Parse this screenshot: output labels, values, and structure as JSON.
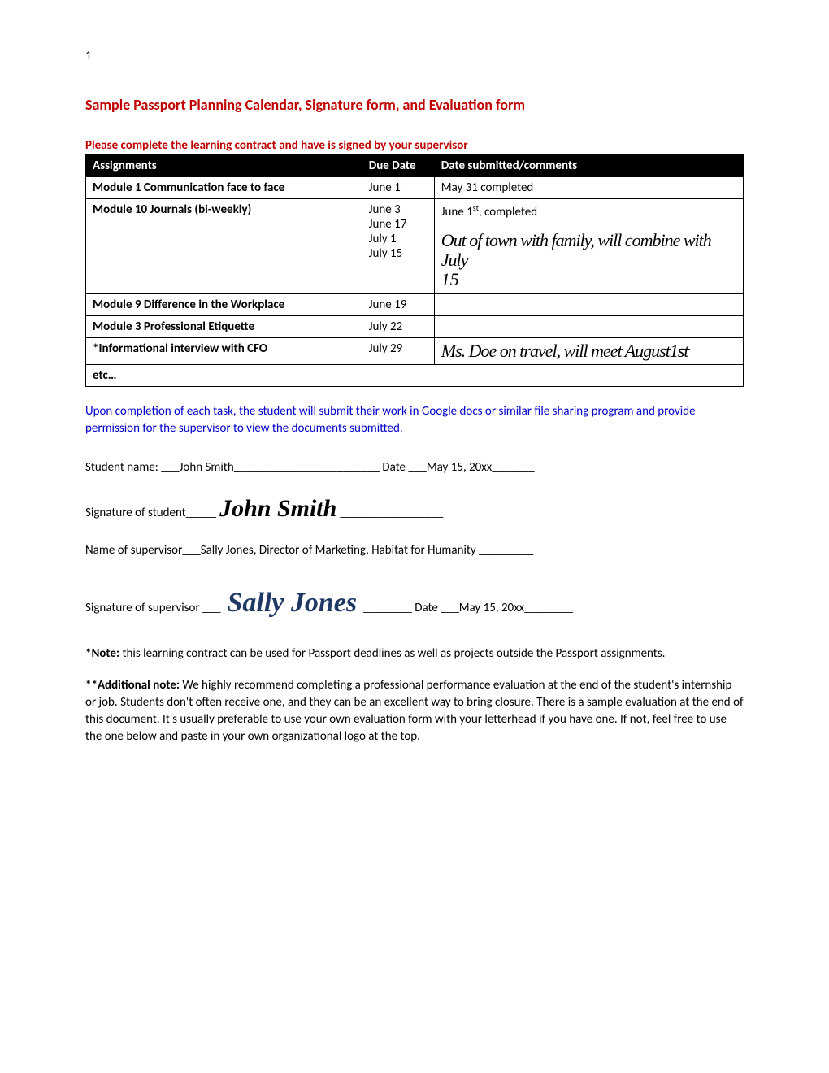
{
  "page_number": "1",
  "title": "Sample Passport Planning Calendar, Signature form, and Evaluation form",
  "subtitle": "Please complete the learning contract and have is signed by your supervisor",
  "table": {
    "headers": [
      "Assignments",
      "Due Date",
      "Date submitted/comments"
    ],
    "rows": [
      {
        "assignment": "Module 1 Communication face to face",
        "due": "June 1",
        "comment_plain": "May 31 completed",
        "bold": true
      },
      {
        "assignment": "Module 10 Journals (bi-weekly)",
        "due_lines": [
          "June 3",
          "June 17",
          "July 1",
          "July 15"
        ],
        "comment_first": "June 1",
        "comment_first_sup": "st",
        "comment_first_tail": ", completed",
        "comment_hand1": "Out of town with family, will combine with July",
        "comment_hand2": "15",
        "bold": true
      },
      {
        "assignment": "Module 9 Difference in the Workplace",
        "due": "June 19",
        "comment_plain": "",
        "bold": true
      },
      {
        "assignment": "Module 3  Professional Etiquette",
        "due": "July 22",
        "comment_plain": "",
        "bold": true
      },
      {
        "assignment": "*Informational interview with CFO",
        "due": "July 29",
        "comment_hand": "Ms. Doe on travel, will meet August",
        "comment_hand_strike": "1st",
        "bold": true
      },
      {
        "assignment": "etc…",
        "colspan": 3,
        "bold": true
      }
    ]
  },
  "blue_note": "Upon completion of each task, the student will submit their work in Google docs or similar file sharing program and provide permission for the supervisor to view the documents submitted.",
  "student": {
    "label": "Student name:  ___",
    "name": "John Smith",
    "tail": "________________________    ",
    "date_label": "Date  ___",
    "date": "May 15, 20xx",
    "date_tail": "_______"
  },
  "student_sig": {
    "label": "Signature of student_____",
    "sig": "John Smith",
    "tail": "_________________"
  },
  "supervisor": {
    "label": "Name of supervisor___",
    "name": "Sally Jones, Director of Marketing, Habitat for Humanity",
    "tail": " _________"
  },
  "supervisor_sig": {
    "label": "Signature of supervisor ___",
    "sig": "Sally Jones",
    "mid": "________               ",
    "date_label": "Date  ___",
    "date": "May 15, 20xx",
    "date_tail": "________"
  },
  "note1_label": "*Note:",
  "note1_text": "  this learning contract can be used for Passport deadlines as well as projects outside the Passport assignments.",
  "note2_label": "**Additional note:",
  "note2_text": "   We highly recommend completing a professional performance evaluation at the end of the student's internship or job.  Students don't often receive one, and they can be an excellent way to bring closure.  There is a sample evaluation at the end of this document.   It's usually preferable to use your own evaluation form with your letterhead if you have one.  If not, feel free to use the one below and paste in your own organizational logo at the top."
}
